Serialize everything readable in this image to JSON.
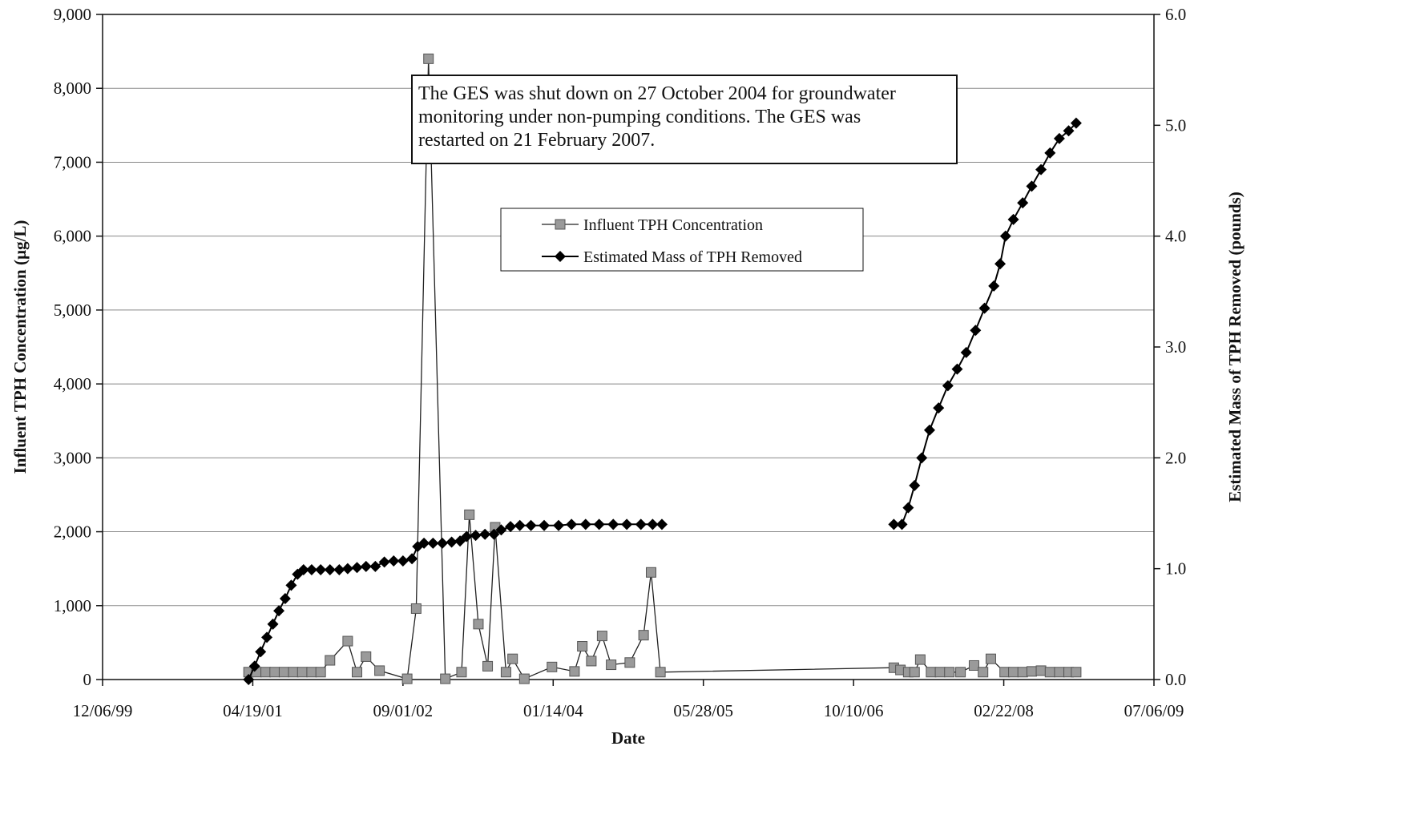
{
  "chart_data": {
    "type": "line",
    "title": "",
    "xlabel": "Date",
    "ylabel_left": "Influent TPH Concentration (µg/L)",
    "ylabel_right": "Estimated Mass of TPH Removed (pounds)",
    "x_ticks": [
      "12/06/99",
      "04/19/01",
      "09/01/02",
      "01/14/04",
      "05/28/05",
      "10/10/06",
      "02/22/08",
      "07/06/09"
    ],
    "y_left_ticks": [
      "0",
      "1,000",
      "2,000",
      "3,000",
      "4,000",
      "5,000",
      "6,000",
      "7,000",
      "8,000",
      "9,000"
    ],
    "y_right_ticks": [
      "0.0",
      "1.0",
      "2.0",
      "3.0",
      "4.0",
      "5.0",
      "6.0"
    ],
    "ylim_left": [
      0,
      9000
    ],
    "ylim_right": [
      0,
      6
    ],
    "xlim": [
      "1999-12-06",
      "2009-07-06"
    ],
    "grid": "horizontal",
    "legend_position": "center",
    "annotation": {
      "lines": [
        "The GES was shut down on 27 October 2004 for groundwater",
        "monitoring under non-pumping conditions. The GES was",
        "restarted on 21 February 2007."
      ]
    },
    "series": [
      {
        "name": "Influent TPH Concentration",
        "axis": "left",
        "color": "#9a9a9a",
        "marker": "square",
        "points": [
          [
            "2001-04-05",
            100
          ],
          [
            "2001-05-01",
            100
          ],
          [
            "2001-06-01",
            100
          ],
          [
            "2001-07-01",
            100
          ],
          [
            "2001-08-01",
            100
          ],
          [
            "2001-09-01",
            100
          ],
          [
            "2001-10-01",
            100
          ],
          [
            "2001-11-01",
            100
          ],
          [
            "2001-12-01",
            100
          ],
          [
            "2002-01-01",
            260
          ],
          [
            "2002-03-01",
            520
          ],
          [
            "2002-04-01",
            100
          ],
          [
            "2002-05-01",
            310
          ],
          [
            "2002-06-15",
            120
          ],
          [
            "2002-09-15",
            10
          ],
          [
            "2002-10-15",
            960
          ],
          [
            "2002-11-25",
            8400
          ],
          [
            "2003-01-20",
            10
          ],
          [
            "2003-03-15",
            100
          ],
          [
            "2003-04-10",
            2230
          ],
          [
            "2003-05-10",
            750
          ],
          [
            "2003-06-10",
            180
          ],
          [
            "2003-07-05",
            2060
          ],
          [
            "2003-08-10",
            100
          ],
          [
            "2003-09-01",
            280
          ],
          [
            "2003-10-10",
            10
          ],
          [
            "2004-01-10",
            170
          ],
          [
            "2004-03-25",
            110
          ],
          [
            "2004-04-20",
            450
          ],
          [
            "2004-05-20",
            250
          ],
          [
            "2004-06-25",
            590
          ],
          [
            "2004-07-25",
            200
          ],
          [
            "2004-09-25",
            230
          ],
          [
            "2004-11-10",
            600
          ],
          [
            "2004-12-05",
            1450
          ],
          [
            "2005-01-05",
            100
          ],
          [
            "2007-02-21",
            160
          ],
          [
            "2007-03-15",
            130
          ],
          [
            "2007-04-10",
            100
          ],
          [
            "2007-05-01",
            100
          ],
          [
            "2007-05-20",
            270
          ],
          [
            "2007-06-25",
            100
          ],
          [
            "2007-07-25",
            100
          ],
          [
            "2007-08-25",
            100
          ],
          [
            "2007-10-01",
            100
          ],
          [
            "2007-11-15",
            190
          ],
          [
            "2007-12-15",
            100
          ],
          [
            "2008-01-10",
            280
          ],
          [
            "2008-02-25",
            100
          ],
          [
            "2008-03-25",
            100
          ],
          [
            "2008-04-25",
            100
          ],
          [
            "2008-05-25",
            110
          ],
          [
            "2008-06-25",
            120
          ],
          [
            "2008-07-25",
            100
          ],
          [
            "2008-08-25",
            100
          ],
          [
            "2008-09-25",
            100
          ],
          [
            "2008-10-20",
            100
          ]
        ]
      },
      {
        "name": "Estimated Mass of TPH Removed",
        "axis": "right",
        "color": "#000000",
        "marker": "diamond",
        "points": [
          [
            "2001-04-05",
            0.0
          ],
          [
            "2001-04-25",
            0.12
          ],
          [
            "2001-05-15",
            0.25
          ],
          [
            "2001-06-05",
            0.38
          ],
          [
            "2001-06-25",
            0.5
          ],
          [
            "2001-07-15",
            0.62
          ],
          [
            "2001-08-05",
            0.73
          ],
          [
            "2001-08-25",
            0.85
          ],
          [
            "2001-09-15",
            0.95
          ],
          [
            "2001-10-05",
            0.99
          ],
          [
            "2001-11-01",
            0.99
          ],
          [
            "2001-12-01",
            0.99
          ],
          [
            "2002-01-01",
            0.99
          ],
          [
            "2002-02-01",
            0.99
          ],
          [
            "2002-03-01",
            1.0
          ],
          [
            "2002-04-01",
            1.01
          ],
          [
            "2002-05-01",
            1.02
          ],
          [
            "2002-06-01",
            1.02
          ],
          [
            "2002-07-01",
            1.06
          ],
          [
            "2002-08-01",
            1.07
          ],
          [
            "2002-09-01",
            1.07
          ],
          [
            "2002-10-01",
            1.09
          ],
          [
            "2002-10-20",
            1.2
          ],
          [
            "2002-11-10",
            1.23
          ],
          [
            "2002-12-10",
            1.23
          ],
          [
            "2003-01-10",
            1.23
          ],
          [
            "2003-02-10",
            1.24
          ],
          [
            "2003-03-10",
            1.25
          ],
          [
            "2003-04-01",
            1.29
          ],
          [
            "2003-05-01",
            1.3
          ],
          [
            "2003-06-01",
            1.31
          ],
          [
            "2003-07-01",
            1.31
          ],
          [
            "2003-07-25",
            1.35
          ],
          [
            "2003-08-25",
            1.38
          ],
          [
            "2003-09-25",
            1.39
          ],
          [
            "2003-11-01",
            1.39
          ],
          [
            "2003-12-15",
            1.39
          ],
          [
            "2004-02-01",
            1.39
          ],
          [
            "2004-03-15",
            1.4
          ],
          [
            "2004-05-01",
            1.4
          ],
          [
            "2004-06-15",
            1.4
          ],
          [
            "2004-08-01",
            1.4
          ],
          [
            "2004-09-15",
            1.4
          ],
          [
            "2004-11-01",
            1.4
          ],
          [
            "2004-12-10",
            1.4
          ],
          [
            "2005-01-10",
            1.4
          ],
          [
            "2007-02-21",
            1.4
          ],
          [
            "2007-03-20",
            1.4
          ],
          [
            "2007-04-10",
            1.55
          ],
          [
            "2007-05-01",
            1.75
          ],
          [
            "2007-05-25",
            2.0
          ],
          [
            "2007-06-20",
            2.25
          ],
          [
            "2007-07-20",
            2.45
          ],
          [
            "2007-08-20",
            2.65
          ],
          [
            "2007-09-20",
            2.8
          ],
          [
            "2007-10-20",
            2.95
          ],
          [
            "2007-11-20",
            3.15
          ],
          [
            "2007-12-20",
            3.35
          ],
          [
            "2008-01-20",
            3.55
          ],
          [
            "2008-02-10",
            3.75
          ],
          [
            "2008-02-28",
            4.0
          ],
          [
            "2008-03-25",
            4.15
          ],
          [
            "2008-04-25",
            4.3
          ],
          [
            "2008-05-25",
            4.45
          ],
          [
            "2008-06-25",
            4.6
          ],
          [
            "2008-07-25",
            4.75
          ],
          [
            "2008-08-25",
            4.88
          ],
          [
            "2008-09-25",
            4.95
          ],
          [
            "2008-10-20",
            5.02
          ]
        ]
      }
    ]
  }
}
